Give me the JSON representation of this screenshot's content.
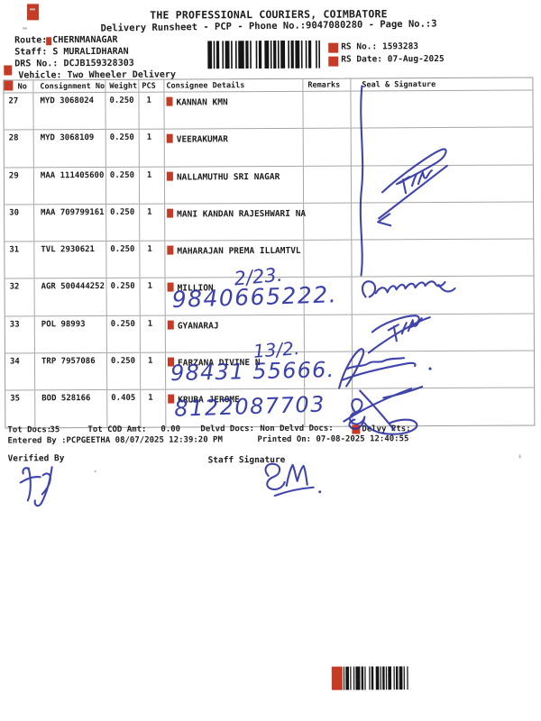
{
  "document": {
    "title": "THE PROFESSIONAL COURIERS, COIMBATORE",
    "subtitle": "Delivery Runsheet - PCP - Phone No.:9047080280 - Page No.:3"
  },
  "info": {
    "route_label": "Route:",
    "route": "CHERNMANAGAR",
    "staff_label": "Staff:",
    "staff": "S MURALIDHARAN",
    "drs_label": "DRS No.:",
    "drs": "DCJB159328303",
    "vehicle_label": "Vehicle:",
    "vehicle": "Two Wheeler Delivery",
    "rs_no_label": "RS No.:",
    "rs_no": "1593283",
    "rs_date_label": "RS Date:",
    "rs_date": "07-Aug-2025"
  },
  "table": {
    "columns": [
      "S No",
      "Consignment No",
      "Weight",
      "PCS",
      "Consignee Details",
      "Remarks",
      "Seal & Signature"
    ],
    "rows": [
      {
        "s_no": "27",
        "consignment": "MYD 3068024",
        "weight": "0.250",
        "pcs": "1",
        "consignee": "KANNAN KMN"
      },
      {
        "s_no": "28",
        "consignment": "MYD 3068109",
        "weight": "0.250",
        "pcs": "1",
        "consignee": "VEERAKUMAR"
      },
      {
        "s_no": "29",
        "consignment": "MAA 111405600",
        "weight": "0.250",
        "pcs": "1",
        "consignee": "NALLAMUTHU SRI NAGAR"
      },
      {
        "s_no": "30",
        "consignment": "MAA 709799161",
        "weight": "0.250",
        "pcs": "1",
        "consignee": "MANI KANDAN RAJESHWARI NA"
      },
      {
        "s_no": "31",
        "consignment": "TVL 2930621",
        "weight": "0.250",
        "pcs": "1",
        "consignee": "MAHARAJAN PREMA ILLAMTVL"
      },
      {
        "s_no": "32",
        "consignment": "AGR 500444252",
        "weight": "0.250",
        "pcs": "1",
        "consignee": "MILLION"
      },
      {
        "s_no": "33",
        "consignment": "POL 98993",
        "weight": "0.250",
        "pcs": "1",
        "consignee": "GYANARAJ"
      },
      {
        "s_no": "34",
        "consignment": "TRP 7957086",
        "weight": "0.250",
        "pcs": "1",
        "consignee": "FARZANA DIVINE N"
      },
      {
        "s_no": "35",
        "consignment": "BOD 528166",
        "weight": "0.405",
        "pcs": "1",
        "consignee": "KRUBA JEROME"
      }
    ]
  },
  "handwritten": {
    "row32_note": "2/23.",
    "row32_phone": "9840665222.",
    "row34_note": "13/2.",
    "row34_phone": "98431 55666.",
    "row35_phone": "8122087703"
  },
  "totals": {
    "tot_docs_label": "Tot Docs:",
    "tot_docs": "35",
    "tot_cod_label": "Tot COD Amt:",
    "tot_cod": "0.00",
    "delvd_docs_label": "Delvd Docs:",
    "non_delvd_docs_label": "Non Delvd Docs:",
    "delvy_pts_label": "Delvy Pts:",
    "entered_by": "Entered By :PCPGEETHA 08/07/2025 12:39:20 PM",
    "printed_on": "Printed On: 07-08-2025 12:40:55"
  },
  "signature_section": {
    "verified_by_label": "Verified By",
    "staff_signature_label": "Staff Signature"
  },
  "ink_marks": [
    "seal-column-pen-line",
    "row29-signature",
    "row32-signature",
    "row33-signature",
    "row34-signature",
    "row35-signature",
    "verified-by-signature",
    "staff-signature"
  ],
  "colors": {
    "ink_blue": "#2b31a3",
    "marker_red": "#c63b25",
    "text": "#1c1c1c",
    "grid_line": "#a6a6a6"
  }
}
